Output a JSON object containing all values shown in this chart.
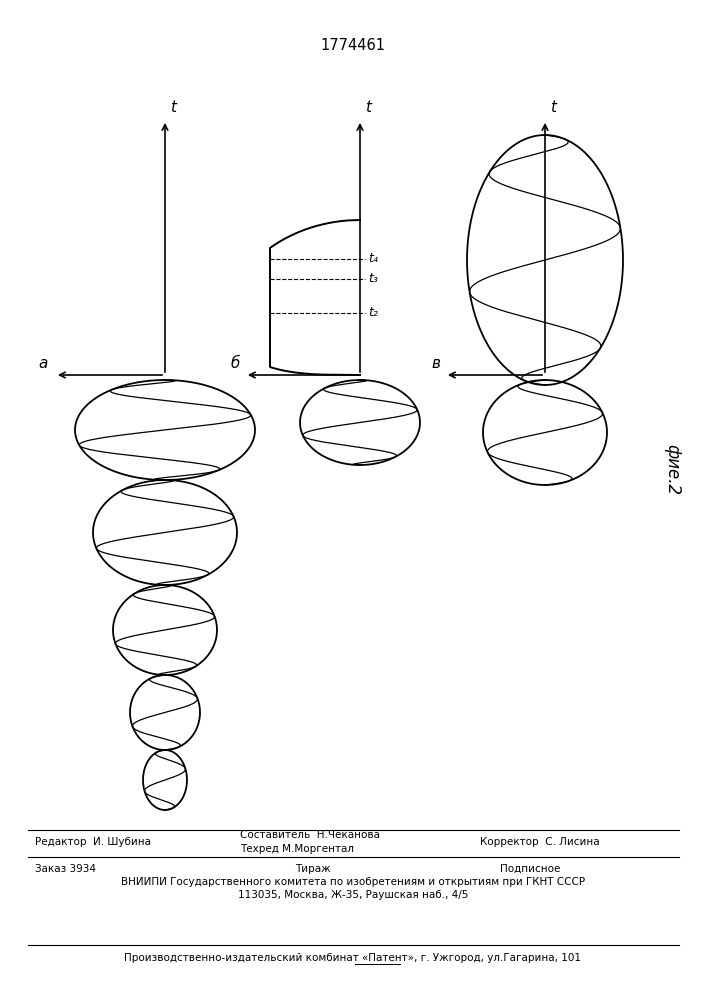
{
  "title": "1774461",
  "title_fontsize": 10,
  "background_color": "#ffffff",
  "label_a": "a",
  "label_b": "б",
  "label_v": "в",
  "label_t": "t",
  "label_fig": "фие.2",
  "label_t2": "t₂",
  "label_t3": "t₃",
  "label_t4": "t₄",
  "footer_line1": "Редактор  И. Шубина",
  "footer_col2_line1": "Составитель  Н.Чеканова",
  "footer_col2_line2": "Техред М.Моргентал",
  "footer_col3": "Корректор  С. Лисина",
  "footer2_line1": "Заказ 3934",
  "footer2_line2": "Тираж",
  "footer2_line3": "Подписное",
  "footer3": "ВНИИПИ Государственного комитета по изобретениям и открытиям при ГКНТ СССР",
  "footer4": "113035, Москва, Ж-35, Раушская наб., 4/5",
  "footer5": "Производственно-издательский комбинат «Патент», г. Ужгород, ул.Гагарина, 101"
}
